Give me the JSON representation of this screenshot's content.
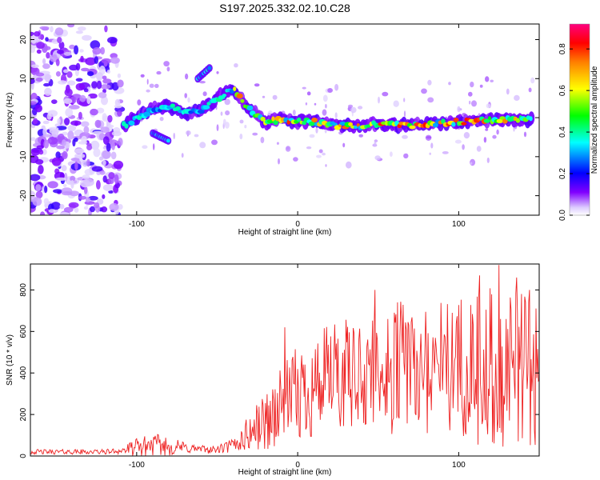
{
  "title": "S197.2025.332.02.10.C28",
  "chart_data": [
    {
      "type": "heatmap",
      "xlabel": "Height of straight line (km)",
      "ylabel": "Frequency (Hz)",
      "xlim": [
        -166,
        150
      ],
      "ylim": [
        -25,
        24
      ],
      "xticks": [
        -100,
        0,
        100
      ],
      "yticks": [
        -20,
        -10,
        0,
        10,
        20
      ],
      "colorbar": {
        "label": "Normalized spectral amplitude",
        "range": [
          0.0,
          0.92
        ],
        "ticks": [
          "0.0",
          "0.2",
          "0.4",
          "0.6",
          "0.8"
        ],
        "tick_values": [
          0.0,
          0.2,
          0.4,
          0.6,
          0.8
        ],
        "colors": [
          "#ffffff",
          "#ddccff",
          "#8000ff",
          "#0000ff",
          "#00ffff",
          "#00ff00",
          "#ffff00",
          "#ff8000",
          "#ff0000",
          "#ff0080"
        ]
      },
      "ridge": {
        "x": [
          -108,
          -100,
          -90,
          -80,
          -70,
          -60,
          -52,
          -45,
          -40,
          -34,
          -28,
          -20,
          -10,
          0,
          10,
          20,
          30,
          40,
          50,
          60,
          70,
          80,
          90,
          100,
          110,
          120,
          130,
          140,
          146
        ],
        "y": [
          -2,
          0,
          2,
          3,
          1,
          2,
          4,
          6.5,
          7.5,
          4,
          1.5,
          -1,
          -0.5,
          -1,
          -1,
          -2,
          -2,
          -2,
          -1.5,
          -2,
          -2,
          -1.5,
          -1.5,
          -1,
          -1,
          -0.5,
          -0.5,
          -0.5,
          -0.5
        ],
        "branches": [
          {
            "x": [
              -62,
              -54
            ],
            "y": [
              10,
              13
            ]
          },
          {
            "x": [
              -90,
              -80
            ],
            "y": [
              -4,
              -6
            ]
          }
        ]
      },
      "noise_region": {
        "x_from": -166,
        "x_to": -110,
        "y_from": -25,
        "y_to": 24
      }
    },
    {
      "type": "line",
      "xlabel": "Height of straight line (km)",
      "ylabel": "SNR (10 * v/v)",
      "xlim": [
        -166,
        150
      ],
      "ylim": [
        0,
        925
      ],
      "xticks": [
        -100,
        0,
        100
      ],
      "yticks": [
        0,
        200,
        400,
        600,
        800
      ],
      "color": "#ee2222",
      "envelope": {
        "x": [
          -166,
          -120,
          -110,
          -100,
          -90,
          -80,
          -70,
          -60,
          -50,
          -40,
          -30,
          -20,
          -10,
          0,
          10,
          20,
          30,
          40,
          60,
          80,
          100,
          120,
          140,
          150
        ],
        "base": [
          20,
          20,
          25,
          40,
          55,
          45,
          40,
          32,
          30,
          50,
          110,
          170,
          230,
          290,
          340,
          370,
          390,
          400,
          420,
          430,
          440,
          440,
          430,
          430
        ],
        "amp": [
          12,
          12,
          15,
          45,
          55,
          45,
          30,
          20,
          18,
          40,
          90,
          150,
          200,
          240,
          260,
          260,
          270,
          280,
          320,
          340,
          340,
          380,
          380,
          380
        ]
      },
      "highlights": {
        "x": [
          -8,
          48,
          62,
          96,
          113,
          125,
          136,
          144
        ],
        "y": [
          620,
          800,
          740,
          690,
          870,
          920,
          860,
          800
        ]
      }
    }
  ]
}
